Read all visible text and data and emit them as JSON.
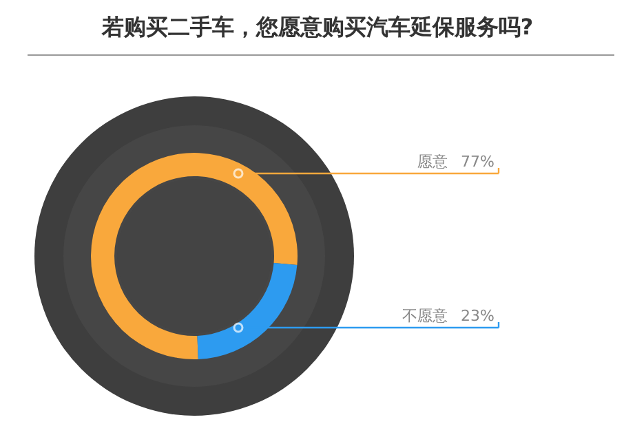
{
  "chart_data": {
    "type": "donut",
    "title": "若购买二手车，您愿意购买汽车延保服务吗?",
    "categories": [
      "愿意",
      "不愿意"
    ],
    "values": [
      77,
      23
    ],
    "colors": [
      "#f9a83c",
      "#2d9bf0"
    ],
    "value_labels": [
      "77%",
      "23%"
    ]
  }
}
